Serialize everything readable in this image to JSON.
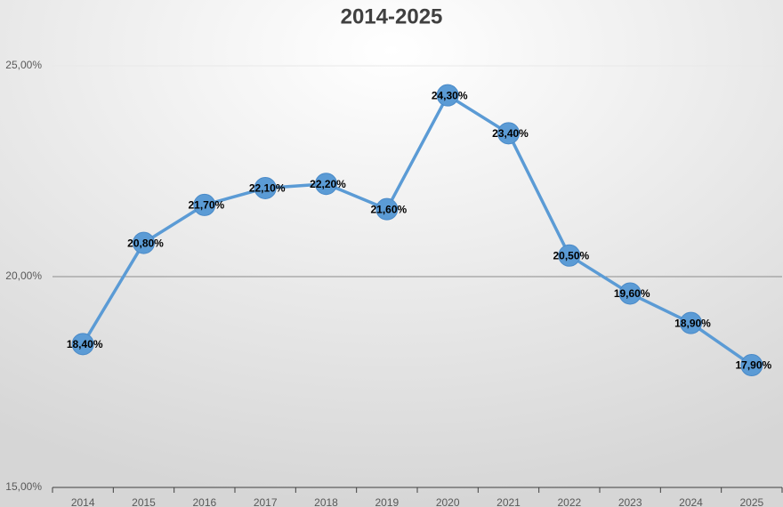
{
  "chart_data": {
    "type": "line",
    "title": "2014-2025",
    "categories": [
      "2014",
      "2015",
      "2016",
      "2017",
      "2018",
      "2019",
      "2020",
      "2021",
      "2022",
      "2023",
      "2024",
      "2025"
    ],
    "values": [
      18.4,
      20.8,
      21.7,
      22.1,
      22.2,
      21.6,
      24.3,
      23.4,
      20.5,
      19.6,
      18.9,
      17.9
    ],
    "value_labels": [
      "18,40%",
      "20,80%",
      "21,70%",
      "22,10%",
      "22,20%",
      "21,60%",
      "24,30%",
      "23,40%",
      "20,50%",
      "19,60%",
      "18,90%",
      "17,90%"
    ],
    "color": "#5b9bd5",
    "ylim": [
      15,
      25
    ],
    "yticks": [
      {
        "value": 15,
        "label": "15,00%"
      },
      {
        "value": 20,
        "label": "20,00%"
      },
      {
        "value": 25,
        "label": "25,00%"
      }
    ],
    "grid": true
  }
}
